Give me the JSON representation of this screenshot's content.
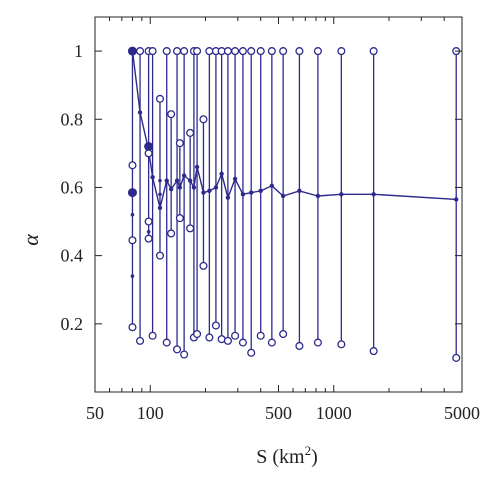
{
  "chart_data": {
    "type": "scatter",
    "xlabel": "S (km",
    "xlabel_sup": "2",
    "xlabel_close": ")",
    "ylabel": "α",
    "xscale": "log",
    "xlim": [
      50,
      5000
    ],
    "ylim": [
      0,
      1.1
    ],
    "xticks": [
      {
        "value": 50,
        "label": "50"
      },
      {
        "value": 100,
        "label": "100"
      },
      {
        "value": 500,
        "label": "500"
      },
      {
        "value": 1000,
        "label": "1000"
      },
      {
        "value": 5000,
        "label": "5000"
      }
    ],
    "xminor": [
      60,
      70,
      80,
      90,
      200,
      300,
      400,
      600,
      700,
      800,
      900,
      2000,
      3000,
      4000
    ],
    "yticks": [
      {
        "value": 0.2,
        "label": "0.2"
      },
      {
        "value": 0.4,
        "label": "0.4"
      },
      {
        "value": 0.6,
        "label": "0.6"
      },
      {
        "value": 0.8,
        "label": "0.8"
      },
      {
        "value": 1.0,
        "label": "1"
      }
    ],
    "grid": false,
    "color": "#2e2a8c",
    "ranges": [
      {
        "x": 80,
        "min": 0.19,
        "max": 1.0,
        "mean": 1.0
      },
      {
        "x": 88,
        "min": 0.15,
        "max": 1.0,
        "mean": 0.82
      },
      {
        "x": 98,
        "min": 0.45,
        "max": 1.0,
        "mean": 0.71
      },
      {
        "x": 103,
        "min": 0.165,
        "max": 1.0,
        "mean": 0.63
      },
      {
        "x": 113,
        "min": 0.4,
        "max": 0.86,
        "mean": 0.54
      },
      {
        "x": 123,
        "min": 0.145,
        "max": 1.0,
        "mean": 0.62
      },
      {
        "x": 130,
        "min": 0.465,
        "max": 0.815,
        "mean": 0.595
      },
      {
        "x": 140,
        "min": 0.125,
        "max": 1.0,
        "mean": 0.62
      },
      {
        "x": 145,
        "min": 0.51,
        "max": 0.73,
        "mean": 0.6
      },
      {
        "x": 153,
        "min": 0.11,
        "max": 1.0,
        "mean": 0.635
      },
      {
        "x": 165,
        "min": 0.48,
        "max": 0.76,
        "mean": 0.62
      },
      {
        "x": 173,
        "min": 0.16,
        "max": 1.0,
        "mean": 0.6
      },
      {
        "x": 180,
        "min": 0.17,
        "max": 1.0,
        "mean": 0.66
      },
      {
        "x": 195,
        "min": 0.37,
        "max": 0.8,
        "mean": 0.585
      },
      {
        "x": 210,
        "min": 0.16,
        "max": 1.0,
        "mean": 0.59
      },
      {
        "x": 228,
        "min": 0.195,
        "max": 1.0,
        "mean": 0.6
      },
      {
        "x": 245,
        "min": 0.155,
        "max": 1.0,
        "mean": 0.64
      },
      {
        "x": 265,
        "min": 0.15,
        "max": 1.0,
        "mean": 0.57
      },
      {
        "x": 290,
        "min": 0.165,
        "max": 1.0,
        "mean": 0.625
      },
      {
        "x": 320,
        "min": 0.145,
        "max": 1.0,
        "mean": 0.58
      },
      {
        "x": 355,
        "min": 0.115,
        "max": 1.0,
        "mean": 0.585
      },
      {
        "x": 400,
        "min": 0.165,
        "max": 1.0,
        "mean": 0.59
      },
      {
        "x": 460,
        "min": 0.145,
        "max": 1.0,
        "mean": 0.605
      },
      {
        "x": 530,
        "min": 0.17,
        "max": 1.0,
        "mean": 0.575
      },
      {
        "x": 650,
        "min": 0.135,
        "max": 1.0,
        "mean": 0.59
      },
      {
        "x": 820,
        "min": 0.145,
        "max": 1.0,
        "mean": 0.575
      },
      {
        "x": 1100,
        "min": 0.14,
        "max": 1.0,
        "mean": 0.58
      },
      {
        "x": 1650,
        "min": 0.12,
        "max": 1.0,
        "mean": 0.58
      },
      {
        "x": 4650,
        "min": 0.1,
        "max": 1.0,
        "mean": 0.565
      }
    ],
    "extra_points": [
      {
        "x": 80,
        "y": 0.665,
        "style": "open"
      },
      {
        "x": 80,
        "y": 0.585,
        "style": "filled"
      },
      {
        "x": 80,
        "y": 0.445,
        "style": "open"
      },
      {
        "x": 80,
        "y": 0.52,
        "style": "small"
      },
      {
        "x": 80,
        "y": 0.34,
        "style": "small"
      },
      {
        "x": 98,
        "y": 0.72,
        "style": "filled"
      },
      {
        "x": 98,
        "y": 0.7,
        "style": "open"
      },
      {
        "x": 98,
        "y": 0.5,
        "style": "open"
      },
      {
        "x": 98,
        "y": 0.47,
        "style": "small"
      },
      {
        "x": 113,
        "y": 0.58,
        "style": "small"
      },
      {
        "x": 113,
        "y": 0.62,
        "style": "small"
      }
    ]
  }
}
